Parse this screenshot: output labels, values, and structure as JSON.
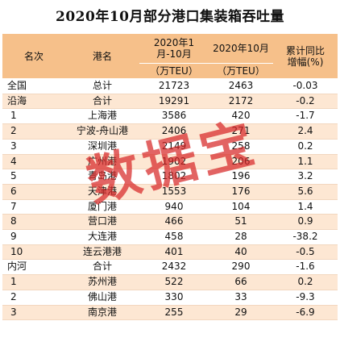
{
  "title": "2020年10月部分港口集装箱吞吐量",
  "watermark": "数据宝",
  "headers": {
    "rank": "名次",
    "port": "港名",
    "ytd": "2020年1月-10月",
    "ytd_unit": "（万TEU）",
    "oct": "2020年10月",
    "oct_unit": "（万TEU）",
    "growth": "累计同比增幅(%)"
  },
  "rows": [
    {
      "rank": "全国",
      "port": "总计",
      "ytd": "21723",
      "oct": "2463",
      "growth": "-0.03",
      "cat": true
    },
    {
      "rank": "沿海",
      "port": "合计",
      "ytd": "19291",
      "oct": "2172",
      "growth": "-0.2",
      "cat": true
    },
    {
      "rank": "1",
      "port": "上海港",
      "ytd": "3586",
      "oct": "420",
      "growth": "-1.7"
    },
    {
      "rank": "2",
      "port": "宁波-舟山港",
      "ytd": "2406",
      "oct": "271",
      "growth": "2.4"
    },
    {
      "rank": "3",
      "port": "深圳港",
      "ytd": "2149",
      "oct": "258",
      "growth": "0.2"
    },
    {
      "rank": "4",
      "port": "广州港",
      "ytd": "1902",
      "oct": "206",
      "growth": "1.1"
    },
    {
      "rank": "5",
      "port": "青岛港",
      "ytd": "1802",
      "oct": "196",
      "growth": "3.2"
    },
    {
      "rank": "6",
      "port": "天津港",
      "ytd": "1553",
      "oct": "176",
      "growth": "5.6"
    },
    {
      "rank": "7",
      "port": "厦门港",
      "ytd": "940",
      "oct": "104",
      "growth": "1.4"
    },
    {
      "rank": "8",
      "port": "营口港",
      "ytd": "466",
      "oct": "51",
      "growth": "0.9"
    },
    {
      "rank": "9",
      "port": "大连港",
      "ytd": "458",
      "oct": "28",
      "growth": "-38.2"
    },
    {
      "rank": "10",
      "port": "连云港港",
      "ytd": "401",
      "oct": "40",
      "growth": "-0.5"
    },
    {
      "rank": "内河",
      "port": "合计",
      "ytd": "2432",
      "oct": "290",
      "growth": "-1.6",
      "cat": true
    },
    {
      "rank": "1",
      "port": "苏州港",
      "ytd": "522",
      "oct": "66",
      "growth": "0.2"
    },
    {
      "rank": "2",
      "port": "佛山港",
      "ytd": "330",
      "oct": "33",
      "growth": "-9.3"
    },
    {
      "rank": "3",
      "port": "南京港",
      "ytd": "255",
      "oct": "29",
      "growth": "-6.9"
    }
  ]
}
